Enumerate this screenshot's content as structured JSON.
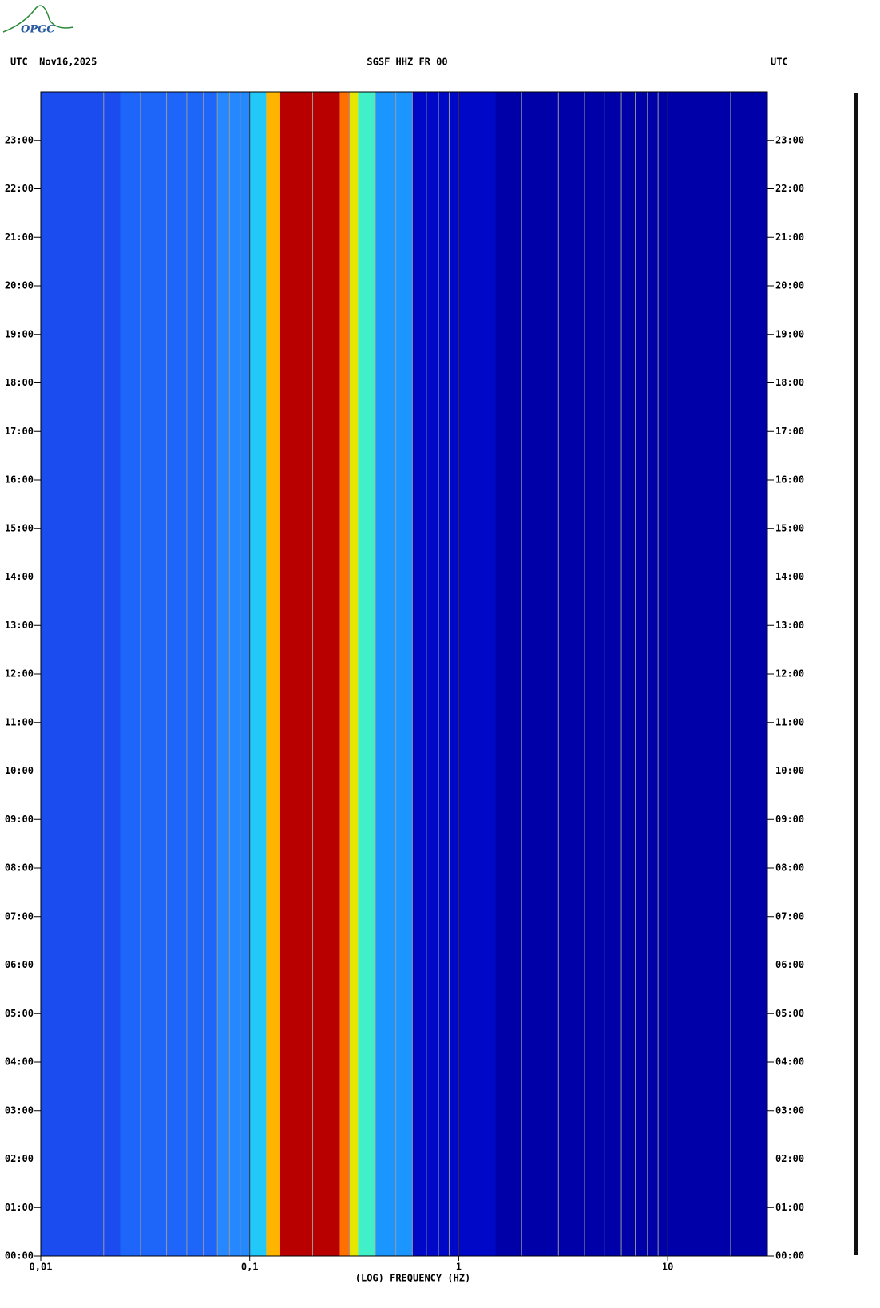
{
  "header": {
    "logo": "OPGC",
    "left": "UTC  Nov16,2025",
    "center": "SGSF HHZ FR 00",
    "right": "UTC"
  },
  "chart_data": {
    "type": "spectrogram",
    "x_label": "(LOG) FREQUENCY (HZ)",
    "log_x": true,
    "xlim": [
      0.01,
      30
    ],
    "xticks": [
      {
        "value": 0.01,
        "label": "0,01"
      },
      {
        "value": 0.1,
        "label": "0,1"
      },
      1,
      10
    ],
    "xgrid": [
      0.02,
      0.03,
      0.04,
      0.05,
      0.06,
      0.07,
      0.08,
      0.09,
      0.2,
      0.3,
      0.4,
      0.5,
      0.6,
      0.7,
      0.8,
      0.9,
      2,
      3,
      4,
      5,
      6,
      7,
      8,
      9,
      20
    ],
    "grid_color": "#9a9a9a",
    "ylim": [
      0,
      24
    ],
    "yticks": [
      {
        "value": 0,
        "label": "00:00"
      },
      {
        "value": 1,
        "label": "01:00"
      },
      {
        "value": 2,
        "label": "02:00"
      },
      {
        "value": 3,
        "label": "03:00"
      },
      {
        "value": 4,
        "label": "04:00"
      },
      {
        "value": 5,
        "label": "05:00"
      },
      {
        "value": 6,
        "label": "06:00"
      },
      {
        "value": 7,
        "label": "07:00"
      },
      {
        "value": 8,
        "label": "08:00"
      },
      {
        "value": 9,
        "label": "09:00"
      },
      {
        "value": 10,
        "label": "10:00"
      },
      {
        "value": 11,
        "label": "11:00"
      },
      {
        "value": 12,
        "label": "12:00"
      },
      {
        "value": 13,
        "label": "13:00"
      },
      {
        "value": 14,
        "label": "14:00"
      },
      {
        "value": 15,
        "label": "15:00"
      },
      {
        "value": 16,
        "label": "16:00"
      },
      {
        "value": 17,
        "label": "17:00"
      },
      {
        "value": 18,
        "label": "18:00"
      },
      {
        "value": 19,
        "label": "19:00"
      },
      {
        "value": 20,
        "label": "20:00"
      },
      {
        "value": 21,
        "label": "21:00"
      },
      {
        "value": 22,
        "label": "22:00"
      },
      {
        "value": 23,
        "label": "23:00"
      }
    ],
    "bands": [
      {
        "from": 0.01,
        "to": 0.024,
        "color": "#1a4cf0"
      },
      {
        "from": 0.024,
        "to": 0.07,
        "color": "#1e66fa"
      },
      {
        "from": 0.07,
        "to": 0.1,
        "color": "#2688ff"
      },
      {
        "from": 0.1,
        "to": 0.12,
        "color": "#22c8f8"
      },
      {
        "from": 0.12,
        "to": 0.14,
        "color": "#ffb400"
      },
      {
        "from": 0.14,
        "to": 0.27,
        "color": "#b80000"
      },
      {
        "from": 0.27,
        "to": 0.3,
        "color": "#ff7000"
      },
      {
        "from": 0.3,
        "to": 0.33,
        "color": "#e6e600"
      },
      {
        "from": 0.33,
        "to": 0.4,
        "color": "#40f0c8"
      },
      {
        "from": 0.4,
        "to": 0.6,
        "color": "#1c96ff"
      },
      {
        "from": 0.6,
        "to": 1.5,
        "color": "#0008c8"
      },
      {
        "from": 1.5,
        "to": 30,
        "color": "#0000a8"
      }
    ]
  }
}
